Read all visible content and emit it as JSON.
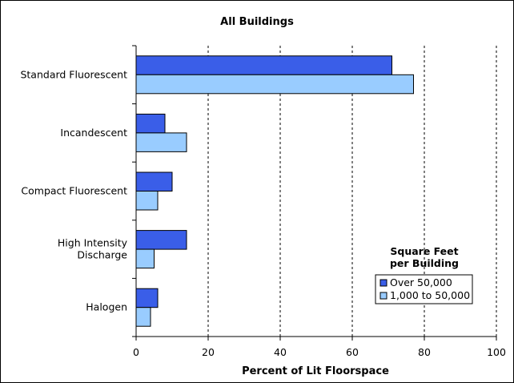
{
  "chart_data": {
    "type": "bar",
    "orientation": "horizontal",
    "title": "All Buildings",
    "xlabel": "Percent of Lit Floorspace",
    "ylabel": "",
    "xlim": [
      0,
      100
    ],
    "xticks": [
      0,
      20,
      40,
      60,
      80,
      100
    ],
    "grid": "vertical-dashed",
    "categories": [
      [
        "Standard Fluorescent"
      ],
      [
        "Incandescent"
      ],
      [
        "Compact Fluorescent"
      ],
      [
        "High Intensity",
        "Discharge"
      ],
      [
        "Halogen"
      ]
    ],
    "legend": {
      "title": [
        "Square Feet",
        "per Building"
      ],
      "placement": "lower-right"
    },
    "series": [
      {
        "name": "Over 50,000",
        "color": "#3a5ee8",
        "values": [
          71,
          8,
          10,
          14,
          6
        ]
      },
      {
        "name": "1,000 to 50,000",
        "color": "#99ccff",
        "values": [
          77,
          14,
          6,
          5,
          4
        ]
      }
    ]
  }
}
